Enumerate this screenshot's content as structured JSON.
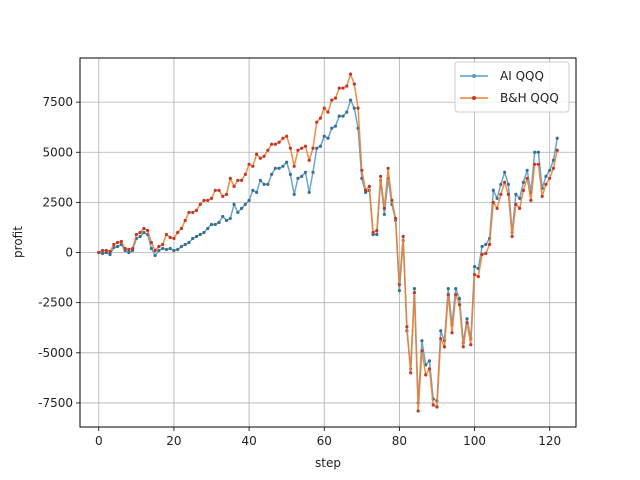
{
  "chart_data": {
    "type": "line",
    "xlabel": "step",
    "ylabel": "profit",
    "xlim": [
      -5,
      127
    ],
    "ylim": [
      -8700,
      9700
    ],
    "xticks": [
      0,
      20,
      40,
      60,
      80,
      100,
      120
    ],
    "yticks": [
      -7500,
      -5000,
      -2500,
      0,
      2500,
      5000,
      7500
    ],
    "grid": true,
    "legend_position": "top-right",
    "series": [
      {
        "name": "AI QQQ",
        "color": "#5b9bc4",
        "points": [
          [
            0,
            0
          ],
          [
            1,
            -50
          ],
          [
            2,
            0
          ],
          [
            3,
            -100
          ],
          [
            4,
            250
          ],
          [
            5,
            300
          ],
          [
            6,
            400
          ],
          [
            7,
            100
          ],
          [
            8,
            0
          ],
          [
            9,
            100
          ],
          [
            10,
            700
          ],
          [
            11,
            800
          ],
          [
            12,
            1000
          ],
          [
            13,
            900
          ],
          [
            14,
            200
          ],
          [
            15,
            -150
          ],
          [
            16,
            100
          ],
          [
            17,
            200
          ],
          [
            18,
            150
          ],
          [
            19,
            200
          ],
          [
            20,
            100
          ],
          [
            21,
            150
          ],
          [
            22,
            300
          ],
          [
            23,
            400
          ],
          [
            24,
            500
          ],
          [
            25,
            700
          ],
          [
            26,
            800
          ],
          [
            27,
            900
          ],
          [
            28,
            1000
          ],
          [
            29,
            1200
          ],
          [
            30,
            1400
          ],
          [
            31,
            1400
          ],
          [
            32,
            1500
          ],
          [
            33,
            1800
          ],
          [
            34,
            1600
          ],
          [
            35,
            1700
          ],
          [
            36,
            2400
          ],
          [
            37,
            2000
          ],
          [
            38,
            2200
          ],
          [
            39,
            2400
          ],
          [
            40,
            2600
          ],
          [
            41,
            3100
          ],
          [
            42,
            3000
          ],
          [
            43,
            3600
          ],
          [
            44,
            3400
          ],
          [
            45,
            3400
          ],
          [
            46,
            3900
          ],
          [
            47,
            4200
          ],
          [
            48,
            4200
          ],
          [
            49,
            4300
          ],
          [
            50,
            4500
          ],
          [
            51,
            3900
          ],
          [
            52,
            2900
          ],
          [
            53,
            3700
          ],
          [
            54,
            3800
          ],
          [
            55,
            4000
          ],
          [
            56,
            3000
          ],
          [
            57,
            4000
          ],
          [
            58,
            5200
          ],
          [
            59,
            5300
          ],
          [
            60,
            5800
          ],
          [
            61,
            5700
          ],
          [
            62,
            6200
          ],
          [
            63,
            6300
          ],
          [
            64,
            6800
          ],
          [
            65,
            6800
          ],
          [
            66,
            7000
          ],
          [
            67,
            7600
          ],
          [
            68,
            7200
          ],
          [
            69,
            6200
          ],
          [
            70,
            3700
          ],
          [
            71,
            3000
          ],
          [
            72,
            3100
          ],
          [
            73,
            900
          ],
          [
            74,
            900
          ],
          [
            75,
            3600
          ],
          [
            76,
            1900
          ],
          [
            77,
            3700
          ],
          [
            78,
            2400
          ],
          [
            79,
            1600
          ],
          [
            80,
            -1900
          ],
          [
            81,
            600
          ],
          [
            82,
            -3900
          ],
          [
            83,
            -5800
          ],
          [
            84,
            -1800
          ],
          [
            85,
            -7500
          ],
          [
            86,
            -4400
          ],
          [
            87,
            -5600
          ],
          [
            88,
            -5400
          ],
          [
            89,
            -7300
          ],
          [
            90,
            -7400
          ],
          [
            91,
            -3900
          ],
          [
            92,
            -4400
          ],
          [
            93,
            -1800
          ],
          [
            94,
            -3600
          ],
          [
            95,
            -1800
          ],
          [
            96,
            -2300
          ],
          [
            97,
            -4500
          ],
          [
            98,
            -3300
          ],
          [
            99,
            -4300
          ],
          [
            100,
            -700
          ],
          [
            101,
            -800
          ],
          [
            102,
            300
          ],
          [
            103,
            400
          ],
          [
            104,
            700
          ],
          [
            105,
            3100
          ],
          [
            106,
            2700
          ],
          [
            107,
            3400
          ],
          [
            108,
            4000
          ],
          [
            109,
            3400
          ],
          [
            110,
            1000
          ],
          [
            111,
            2900
          ],
          [
            112,
            2700
          ],
          [
            113,
            3500
          ],
          [
            114,
            4100
          ],
          [
            115,
            3000
          ],
          [
            116,
            5000
          ],
          [
            117,
            5000
          ],
          [
            118,
            3200
          ],
          [
            119,
            3800
          ],
          [
            120,
            4100
          ],
          [
            121,
            4600
          ],
          [
            122,
            5700
          ]
        ]
      },
      {
        "name": "B&H QQQ",
        "color": "#f08030",
        "points": [
          [
            0,
            0
          ],
          [
            1,
            100
          ],
          [
            2,
            100
          ],
          [
            3,
            50
          ],
          [
            4,
            400
          ],
          [
            5,
            500
          ],
          [
            6,
            550
          ],
          [
            7,
            200
          ],
          [
            8,
            150
          ],
          [
            9,
            200
          ],
          [
            10,
            900
          ],
          [
            11,
            1000
          ],
          [
            12,
            1200
          ],
          [
            13,
            1100
          ],
          [
            14,
            500
          ],
          [
            15,
            100
          ],
          [
            16,
            300
          ],
          [
            17,
            400
          ],
          [
            18,
            900
          ],
          [
            19,
            750
          ],
          [
            20,
            700
          ],
          [
            21,
            1000
          ],
          [
            22,
            1200
          ],
          [
            23,
            1600
          ],
          [
            24,
            2000
          ],
          [
            25,
            2000
          ],
          [
            26,
            2100
          ],
          [
            27,
            2400
          ],
          [
            28,
            2600
          ],
          [
            29,
            2600
          ],
          [
            30,
            2700
          ],
          [
            31,
            3100
          ],
          [
            32,
            3100
          ],
          [
            33,
            2800
          ],
          [
            34,
            2900
          ],
          [
            35,
            3700
          ],
          [
            36,
            3300
          ],
          [
            37,
            3600
          ],
          [
            38,
            3600
          ],
          [
            39,
            3900
          ],
          [
            40,
            4400
          ],
          [
            41,
            4300
          ],
          [
            42,
            4900
          ],
          [
            43,
            4700
          ],
          [
            44,
            4800
          ],
          [
            45,
            5100
          ],
          [
            46,
            5400
          ],
          [
            47,
            5400
          ],
          [
            48,
            5500
          ],
          [
            49,
            5700
          ],
          [
            50,
            5800
          ],
          [
            51,
            5200
          ],
          [
            52,
            4300
          ],
          [
            53,
            5100
          ],
          [
            54,
            5200
          ],
          [
            55,
            5300
          ],
          [
            56,
            4600
          ],
          [
            57,
            5200
          ],
          [
            58,
            6500
          ],
          [
            59,
            6700
          ],
          [
            60,
            7200
          ],
          [
            61,
            7000
          ],
          [
            62,
            7600
          ],
          [
            63,
            7700
          ],
          [
            64,
            8200
          ],
          [
            65,
            8200
          ],
          [
            66,
            8300
          ],
          [
            67,
            8900
          ],
          [
            68,
            8400
          ],
          [
            69,
            7200
          ],
          [
            70,
            4100
          ],
          [
            71,
            3100
          ],
          [
            72,
            3300
          ],
          [
            73,
            1000
          ],
          [
            74,
            1100
          ],
          [
            75,
            3800
          ],
          [
            76,
            2200
          ],
          [
            77,
            4200
          ],
          [
            78,
            2600
          ],
          [
            79,
            1700
          ],
          [
            80,
            -1600
          ],
          [
            81,
            800
          ],
          [
            82,
            -3700
          ],
          [
            83,
            -6000
          ],
          [
            84,
            -2000
          ],
          [
            85,
            -7900
          ],
          [
            86,
            -4900
          ],
          [
            87,
            -6100
          ],
          [
            88,
            -5800
          ],
          [
            89,
            -7600
          ],
          [
            90,
            -7700
          ],
          [
            91,
            -4300
          ],
          [
            92,
            -4700
          ],
          [
            93,
            -2100
          ],
          [
            94,
            -4000
          ],
          [
            95,
            -2100
          ],
          [
            96,
            -2600
          ],
          [
            97,
            -4700
          ],
          [
            98,
            -3500
          ],
          [
            99,
            -4600
          ],
          [
            100,
            -1100
          ],
          [
            101,
            -1200
          ],
          [
            102,
            -100
          ],
          [
            103,
            -50
          ],
          [
            104,
            400
          ],
          [
            105,
            2500
          ],
          [
            106,
            2200
          ],
          [
            107,
            2900
          ],
          [
            108,
            3500
          ],
          [
            109,
            2900
          ],
          [
            110,
            800
          ],
          [
            111,
            2400
          ],
          [
            112,
            2200
          ],
          [
            113,
            3100
          ],
          [
            114,
            3700
          ],
          [
            115,
            2600
          ],
          [
            116,
            4400
          ],
          [
            117,
            4400
          ],
          [
            118,
            2800
          ],
          [
            119,
            3400
          ],
          [
            120,
            3700
          ],
          [
            121,
            4200
          ],
          [
            122,
            5100
          ]
        ]
      }
    ]
  }
}
